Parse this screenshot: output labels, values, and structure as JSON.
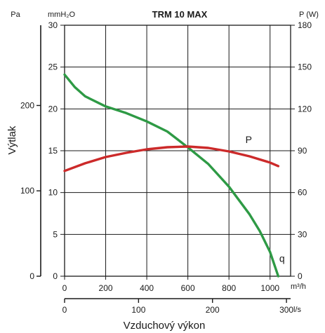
{
  "chart_data": {
    "type": "line",
    "title": "TRM 10 MAX",
    "unit_labels": {
      "pa": "Pa",
      "mmh2o": "mmH₂O",
      "power": "P (W)",
      "m3h": "m³/h",
      "ls": "l/s"
    },
    "ylabel": "Výtlak",
    "xlabel": "Vzduchový výkon",
    "axes": {
      "mmh2o": {
        "range": [
          0,
          30
        ],
        "ticks": [
          "0",
          "5",
          "10",
          "15",
          "20",
          "25",
          "30"
        ]
      },
      "pa": {
        "range": [
          0,
          294
        ],
        "ticks": [
          {
            "value": 0,
            "label": "0"
          },
          {
            "value": 100,
            "label": "100"
          },
          {
            "value": 200,
            "label": "200"
          }
        ]
      },
      "power": {
        "range": [
          0,
          180
        ],
        "ticks": [
          "0",
          "30",
          "60",
          "90",
          "120",
          "150",
          "180"
        ]
      },
      "m3h": {
        "range": [
          0,
          1100
        ],
        "ticks": [
          "0",
          "200",
          "400",
          "600",
          "800",
          "1000"
        ]
      },
      "ls": {
        "range": [
          0,
          305.6
        ],
        "ticks": [
          {
            "value": 0,
            "label": "0"
          },
          {
            "value": 100,
            "label": "100"
          },
          {
            "value": 200,
            "label": "200"
          },
          {
            "value": 300,
            "label": "300"
          }
        ]
      }
    },
    "grid": true,
    "series": [
      {
        "name": "q",
        "color": "#2e9a45",
        "axis": "mmh2o",
        "x": [
          0,
          50,
          100,
          200,
          300,
          400,
          500,
          600,
          700,
          800,
          900,
          950,
          1000,
          1040
        ],
        "y": [
          24.1,
          22.6,
          21.5,
          20.3,
          19.5,
          18.5,
          17.3,
          15.4,
          13.4,
          10.7,
          7.4,
          5.4,
          2.9,
          0
        ]
      },
      {
        "name": "P",
        "color": "#cc2a2a",
        "axis": "power",
        "x": [
          0,
          100,
          200,
          300,
          400,
          500,
          600,
          700,
          800,
          900,
          1000,
          1040
        ],
        "y": [
          75.5,
          81,
          85.5,
          88.5,
          91,
          92.5,
          93,
          92,
          89.5,
          86,
          81.5,
          79
        ]
      }
    ]
  }
}
